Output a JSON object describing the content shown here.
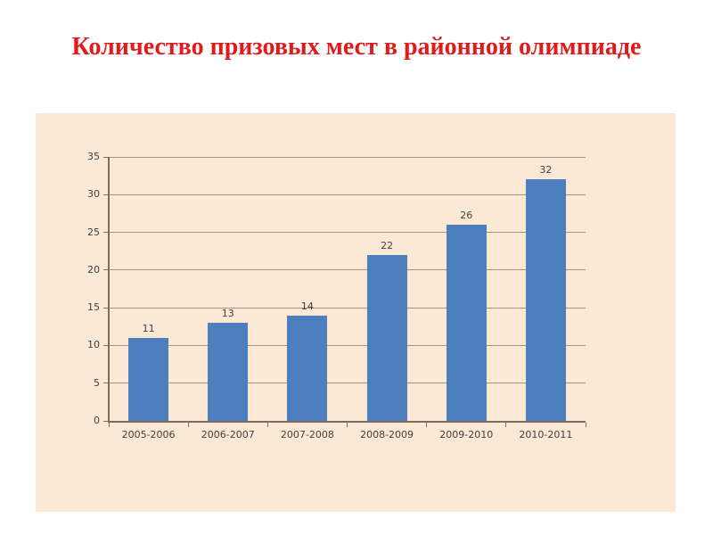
{
  "title": {
    "text": "Количество призовых мест в районной олимпиаде",
    "color": "#e11b1b"
  },
  "chart_data": {
    "type": "bar",
    "title": "Количество призовых мест в районной олимпиаде",
    "categories": [
      "2005-2006",
      "2006-2007",
      "2007-2008",
      "2008-2009",
      "2009-2010",
      "2010-2011"
    ],
    "values": [
      11,
      13,
      14,
      22,
      26,
      32
    ],
    "data_labels": [
      11,
      13,
      14,
      22,
      26,
      32
    ],
    "xlabel": "",
    "ylabel": "",
    "ylim": [
      0,
      35
    ],
    "yticks": [
      0,
      5,
      10,
      15,
      20,
      25,
      30,
      35
    ],
    "grid": "horizontal",
    "legend": "none",
    "colors": {
      "bar_fill": "#4d7ebd",
      "plot_background": "#fbe8d5",
      "gridline": "#a5937f",
      "axis": "#7a6d60",
      "tick_label": "#3f3f3f",
      "title": "#e11b1b",
      "page_background": "#ffffff"
    }
  }
}
